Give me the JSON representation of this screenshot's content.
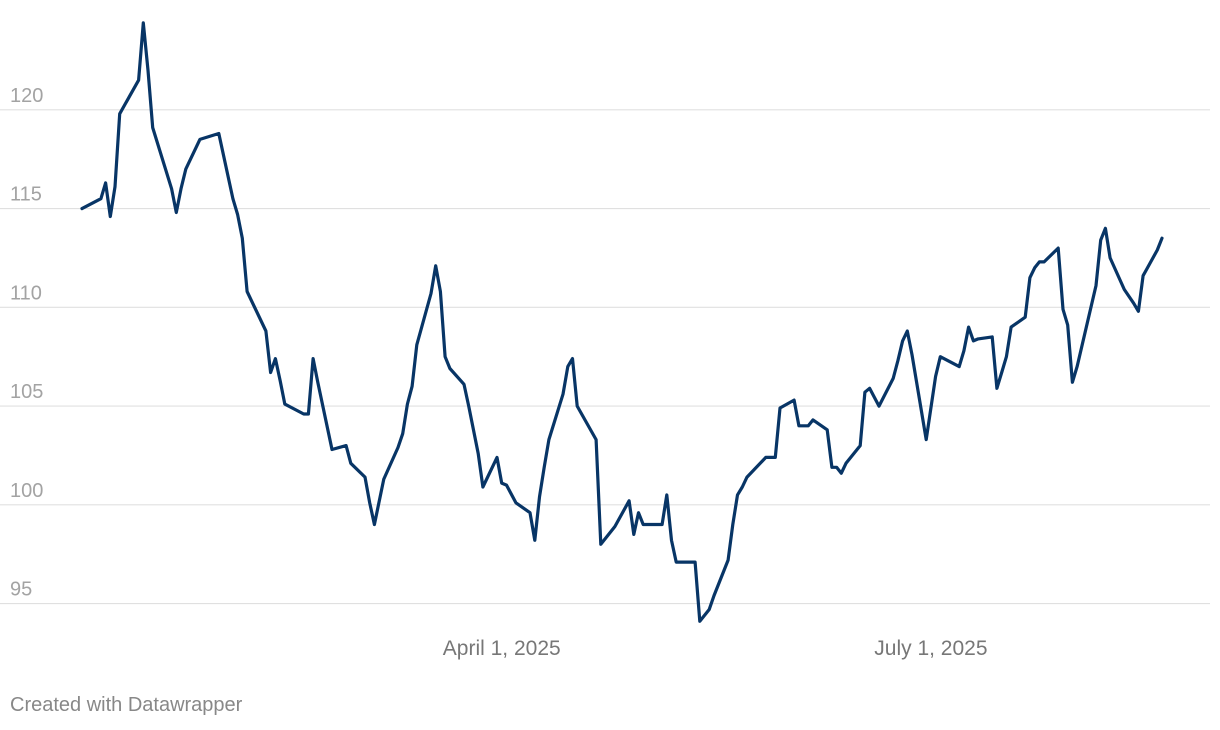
{
  "chart_data": {
    "type": "line",
    "title": "",
    "xlabel": "",
    "ylabel": "",
    "ylim": [
      93,
      125
    ],
    "y_ticks": [
      95,
      100,
      105,
      110,
      115,
      120
    ],
    "x_ticks": [
      {
        "label": "April 1, 2025",
        "date": "2025-04-01"
      },
      {
        "label": "July 1, 2025",
        "date": "2025-07-01"
      }
    ],
    "grid": true,
    "line_color": "#083566",
    "grid_color": "#e0e0e0",
    "series": [
      {
        "points": [
          [
            "2025-01-02",
            115.0
          ],
          [
            "2025-01-06",
            115.5
          ],
          [
            "2025-01-07",
            116.3
          ],
          [
            "2025-01-08",
            114.6
          ],
          [
            "2025-01-09",
            116.1
          ],
          [
            "2025-01-10",
            119.8
          ],
          [
            "2025-01-14",
            121.5
          ],
          [
            "2025-01-15",
            124.4
          ],
          [
            "2025-01-16",
            122.0
          ],
          [
            "2025-01-17",
            119.1
          ],
          [
            "2025-01-21",
            116.0
          ],
          [
            "2025-01-22",
            114.8
          ],
          [
            "2025-01-23",
            116.0
          ],
          [
            "2025-01-24",
            117.0
          ],
          [
            "2025-01-27",
            118.5
          ],
          [
            "2025-01-31",
            118.8
          ],
          [
            "2025-02-03",
            115.5
          ],
          [
            "2025-02-04",
            114.7
          ],
          [
            "2025-02-05",
            113.5
          ],
          [
            "2025-02-06",
            110.8
          ],
          [
            "2025-02-10",
            108.8
          ],
          [
            "2025-02-11",
            106.7
          ],
          [
            "2025-02-12",
            107.4
          ],
          [
            "2025-02-13",
            106.3
          ],
          [
            "2025-02-14",
            105.1
          ],
          [
            "2025-02-18",
            104.6
          ],
          [
            "2025-02-19",
            104.6
          ],
          [
            "2025-02-20",
            107.4
          ],
          [
            "2025-02-21",
            106.2
          ],
          [
            "2025-02-24",
            102.8
          ],
          [
            "2025-02-27",
            103.0
          ],
          [
            "2025-02-28",
            102.1
          ],
          [
            "2025-03-03",
            101.4
          ],
          [
            "2025-03-04",
            100.1
          ],
          [
            "2025-03-05",
            99.0
          ],
          [
            "2025-03-07",
            101.3
          ],
          [
            "2025-03-10",
            102.9
          ],
          [
            "2025-03-11",
            103.6
          ],
          [
            "2025-03-12",
            105.1
          ],
          [
            "2025-03-13",
            106.0
          ],
          [
            "2025-03-14",
            108.1
          ],
          [
            "2025-03-17",
            110.7
          ],
          [
            "2025-03-18",
            112.1
          ],
          [
            "2025-03-19",
            110.8
          ],
          [
            "2025-03-20",
            107.5
          ],
          [
            "2025-03-21",
            106.9
          ],
          [
            "2025-03-24",
            106.1
          ],
          [
            "2025-03-25",
            105.0
          ],
          [
            "2025-03-27",
            102.6
          ],
          [
            "2025-03-28",
            100.9
          ],
          [
            "2025-03-31",
            102.4
          ],
          [
            "2025-04-01",
            101.1
          ],
          [
            "2025-04-02",
            101.0
          ],
          [
            "2025-04-04",
            100.1
          ],
          [
            "2025-04-07",
            99.6
          ],
          [
            "2025-04-08",
            98.2
          ],
          [
            "2025-04-09",
            100.4
          ],
          [
            "2025-04-10",
            101.9
          ],
          [
            "2025-04-11",
            103.3
          ],
          [
            "2025-04-14",
            105.6
          ],
          [
            "2025-04-15",
            107.0
          ],
          [
            "2025-04-16",
            107.4
          ],
          [
            "2025-04-17",
            105.0
          ],
          [
            "2025-04-21",
            103.3
          ],
          [
            "2025-04-22",
            98.0
          ],
          [
            "2025-04-25",
            98.9
          ],
          [
            "2025-04-28",
            100.2
          ],
          [
            "2025-04-29",
            98.5
          ],
          [
            "2025-04-30",
            99.6
          ],
          [
            "2025-05-01",
            99.0
          ],
          [
            "2025-05-05",
            99.0
          ],
          [
            "2025-05-06",
            100.5
          ],
          [
            "2025-05-07",
            98.2
          ],
          [
            "2025-05-08",
            97.1
          ],
          [
            "2025-05-12",
            97.1
          ],
          [
            "2025-05-13",
            94.1
          ],
          [
            "2025-05-14",
            94.4
          ],
          [
            "2025-05-15",
            94.7
          ],
          [
            "2025-05-16",
            95.4
          ],
          [
            "2025-05-19",
            97.2
          ],
          [
            "2025-05-20",
            99.0
          ],
          [
            "2025-05-21",
            100.5
          ],
          [
            "2025-05-22",
            100.9
          ],
          [
            "2025-05-23",
            101.4
          ],
          [
            "2025-05-27",
            102.4
          ],
          [
            "2025-05-28",
            102.4
          ],
          [
            "2025-05-29",
            102.4
          ],
          [
            "2025-05-30",
            104.9
          ],
          [
            "2025-06-02",
            105.3
          ],
          [
            "2025-06-03",
            104.0
          ],
          [
            "2025-06-05",
            104.0
          ],
          [
            "2025-06-06",
            104.3
          ],
          [
            "2025-06-09",
            103.8
          ],
          [
            "2025-06-10",
            101.9
          ],
          [
            "2025-06-11",
            101.9
          ],
          [
            "2025-06-12",
            101.6
          ],
          [
            "2025-06-13",
            102.1
          ],
          [
            "2025-06-16",
            103.0
          ],
          [
            "2025-06-17",
            105.7
          ],
          [
            "2025-06-18",
            105.9
          ],
          [
            "2025-06-20",
            105.0
          ],
          [
            "2025-06-23",
            106.4
          ],
          [
            "2025-06-24",
            107.3
          ],
          [
            "2025-06-25",
            108.3
          ],
          [
            "2025-06-26",
            108.8
          ],
          [
            "2025-06-27",
            107.6
          ],
          [
            "2025-06-30",
            103.3
          ],
          [
            "2025-07-01",
            104.9
          ],
          [
            "2025-07-02",
            106.5
          ],
          [
            "2025-07-03",
            107.5
          ],
          [
            "2025-07-07",
            107.0
          ],
          [
            "2025-07-08",
            107.8
          ],
          [
            "2025-07-09",
            109.0
          ],
          [
            "2025-07-10",
            108.3
          ],
          [
            "2025-07-11",
            108.4
          ],
          [
            "2025-07-14",
            108.5
          ],
          [
            "2025-07-15",
            105.9
          ],
          [
            "2025-07-16",
            106.7
          ],
          [
            "2025-07-17",
            107.5
          ],
          [
            "2025-07-18",
            109.0
          ],
          [
            "2025-07-21",
            109.5
          ],
          [
            "2025-07-22",
            111.5
          ],
          [
            "2025-07-23",
            112.0
          ],
          [
            "2025-07-24",
            112.3
          ],
          [
            "2025-07-25",
            112.3
          ],
          [
            "2025-07-28",
            113.0
          ],
          [
            "2025-07-29",
            109.9
          ],
          [
            "2025-07-30",
            109.1
          ],
          [
            "2025-07-31",
            106.2
          ],
          [
            "2025-08-01",
            107.0
          ],
          [
            "2025-08-05",
            111.1
          ],
          [
            "2025-08-06",
            113.4
          ],
          [
            "2025-08-07",
            114.0
          ],
          [
            "2025-08-08",
            112.5
          ],
          [
            "2025-08-11",
            110.9
          ],
          [
            "2025-08-13",
            110.2
          ],
          [
            "2025-08-14",
            109.8
          ],
          [
            "2025-08-15",
            111.6
          ],
          [
            "2025-08-18",
            112.9
          ],
          [
            "2025-08-19",
            113.5
          ]
        ]
      }
    ]
  },
  "footer": {
    "credit": "Created with Datawrapper"
  }
}
